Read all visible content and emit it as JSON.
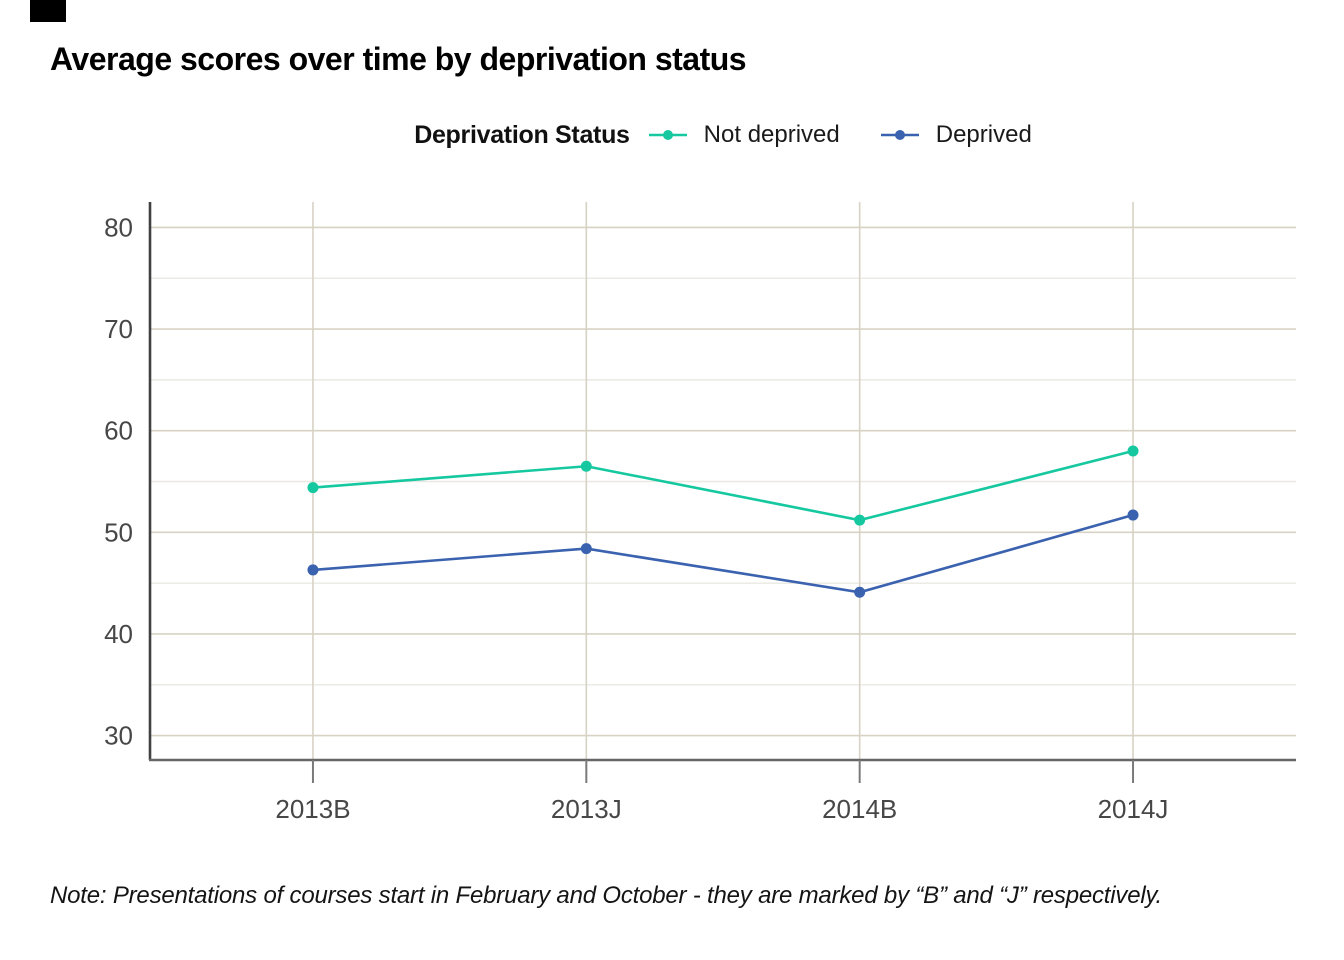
{
  "title": "Average scores over time by deprivation status",
  "legend": {
    "title": "Deprivation Status",
    "position": "top-center"
  },
  "note": "Note: Presentations of courses start in February and October - they are marked by “B” and “J” respectively.",
  "colors": {
    "background": "#ffffff",
    "major_grid": "#d8d2c4",
    "minor_grid": "#eae8e3",
    "y_axis_line": "#414141",
    "x_axis_line": "#666666",
    "tick_mark": "#7a7a7a",
    "axis_label_text": "#474747",
    "title_text": "#000000",
    "corner_element": "#000000"
  },
  "chart_data": {
    "type": "line",
    "title": "Average scores over time by deprivation status",
    "xlabel": "",
    "ylabel": "",
    "categories": [
      "2013B",
      "2013J",
      "2014B",
      "2014J"
    ],
    "series": [
      {
        "name": "Not deprived",
        "color": "#16c8a0",
        "values": [
          54.4,
          56.5,
          51.2,
          58.0
        ]
      },
      {
        "name": "Deprived",
        "color": "#3a62af",
        "values": [
          46.3,
          48.4,
          44.1,
          51.7
        ]
      }
    ],
    "legend_title": "Deprivation Status",
    "y_ticks": [
      80,
      70,
      60,
      50,
      40,
      30
    ],
    "y_minor_ticks": [
      75,
      65,
      55,
      45,
      35
    ],
    "ylim": [
      27.6,
      82.5
    ],
    "grid": "major+minor horizontal, major vertical per category",
    "legend_position": "top-center"
  }
}
